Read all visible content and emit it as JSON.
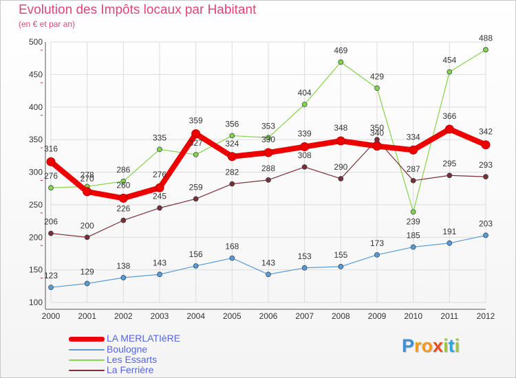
{
  "title": "Evolution des Impôts locaux par Habitant",
  "subtitle": "(en € et par an)",
  "logo": {
    "letters": [
      "P",
      "r",
      "o",
      "x",
      "i",
      "t",
      "i"
    ],
    "colors": [
      "#3d8fd6",
      "#f29a1f",
      "#f29a1f",
      "#e94e1b",
      "#9dc53e",
      "#2aa7d6",
      "#9dc53e"
    ]
  },
  "chart_data": {
    "type": "line",
    "title": "Evolution des Impôts locaux par Habitant",
    "subtitle": "(en € et par an)",
    "xlabel": "",
    "ylabel": "",
    "ylim": [
      100,
      500
    ],
    "yticks": [
      "100",
      "150",
      "200",
      "250",
      "300",
      "350",
      "400",
      "450",
      "500"
    ],
    "categories": [
      "2000",
      "2001",
      "2002",
      "2003",
      "2004",
      "2005",
      "2006",
      "2007",
      "2008",
      "2009",
      "2010",
      "2011",
      "2012"
    ],
    "grid": true,
    "legend_position": "bottom-left",
    "series": [
      {
        "name": "Boulogne",
        "color": "#5a9bd4",
        "values": [
          123,
          129,
          138,
          143,
          156,
          168,
          143,
          153,
          155,
          173,
          185,
          191,
          203
        ],
        "labels": [
          "123",
          "129",
          "138",
          "143",
          "156",
          "168",
          "143",
          "153",
          "155",
          "173",
          "185",
          "191",
          "203"
        ]
      },
      {
        "name": "Les Essarts",
        "color": "#86d24b",
        "values": [
          276,
          278,
          286,
          335,
          327,
          356,
          353,
          404,
          469,
          429,
          239,
          454,
          488
        ],
        "labels": [
          "276",
          "278",
          "286",
          "335",
          "327",
          "356",
          "353",
          "404",
          "469",
          "429",
          "239",
          "454",
          "488"
        ]
      },
      {
        "name": "La Ferrière",
        "color": "#7a2e35",
        "values": [
          206,
          200,
          226,
          245,
          259,
          282,
          288,
          308,
          290,
          350,
          287,
          295,
          293
        ],
        "labels": [
          "206",
          "200",
          "226",
          "245",
          "259",
          "282",
          "288",
          "308",
          "290",
          "350",
          "287",
          "295",
          "293"
        ]
      },
      {
        "name": "LA MERLATIèRE",
        "color": "#ee0000",
        "values": [
          316,
          270,
          260,
          276,
          359,
          324,
          330,
          339,
          348,
          340,
          334,
          366,
          342
        ],
        "labels": [
          "316",
          "270",
          "260",
          "276",
          "359",
          "324",
          "330",
          "339",
          "348",
          "340",
          "334",
          "366",
          "342"
        ]
      }
    ],
    "legend": [
      "LA MERLATIèRE",
      "Boulogne",
      "Les Essarts",
      "La Ferrière"
    ]
  }
}
